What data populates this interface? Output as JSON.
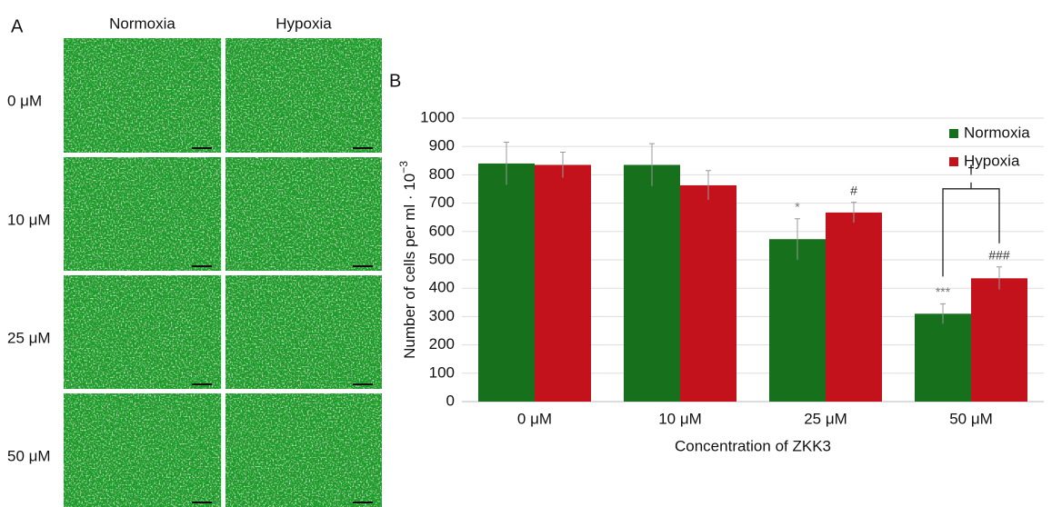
{
  "panel_a": {
    "label": "A",
    "columns": [
      "Normoxia",
      "Hypoxia"
    ],
    "rows": [
      "0 μM",
      "10 μM",
      "25 μM",
      "50 μM"
    ]
  },
  "chart_data": {
    "type": "bar",
    "panel_label": "B",
    "y_label": "Number of cells per ml · 10",
    "y_label_exponent": "−3",
    "x_label": "Concentration of ZKK3",
    "categories": [
      "0 μM",
      "10 μM",
      "25 μM",
      "50 μM"
    ],
    "series": [
      {
        "name": "Normoxia",
        "color": "#17701c",
        "values": [
          840,
          835,
          573,
          310
        ],
        "errors": [
          75,
          75,
          72,
          35
        ],
        "significance": [
          null,
          null,
          "*",
          "***"
        ]
      },
      {
        "name": "Hypoxia",
        "color": "#c3121c",
        "values": [
          835,
          763,
          667,
          435
        ],
        "errors": [
          45,
          52,
          36,
          40
        ],
        "significance": [
          null,
          null,
          "#",
          "###"
        ]
      }
    ],
    "comparison_label": "†",
    "ylim": [
      0,
      1000
    ],
    "yticks": [
      0,
      100,
      200,
      300,
      400,
      500,
      600,
      700,
      800,
      900,
      1000
    ],
    "grid": true,
    "legend": "top-right"
  }
}
